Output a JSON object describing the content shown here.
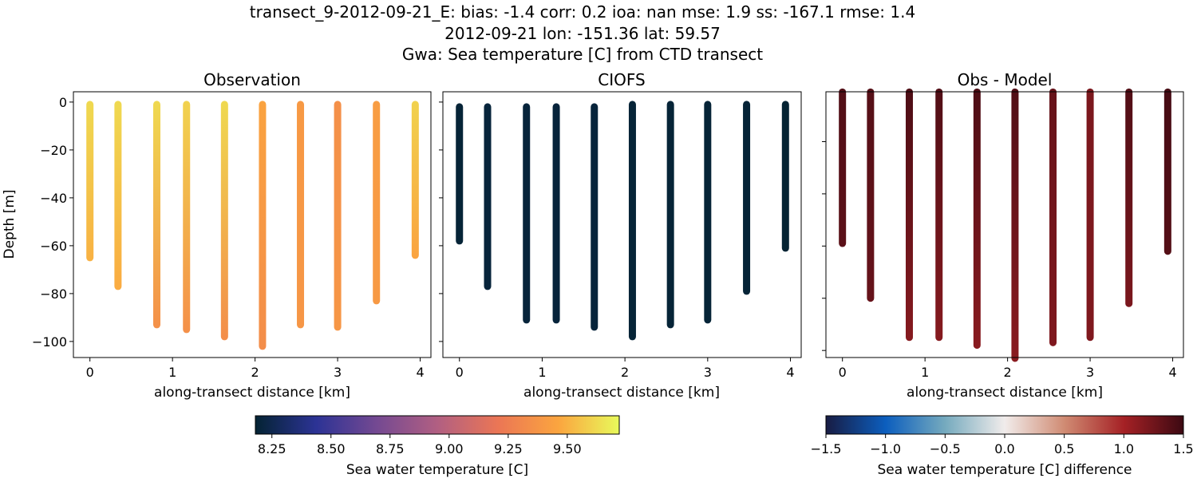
{
  "figure": {
    "title_lines": [
      "transect_9-2012-09-21_E: bias: -1.4  corr: 0.2  ioa: nan  mse: 1.9  ss: -167.1  rmse: 1.4",
      "2012-09-21 lon: -151.36 lat: 59.57",
      "Gwa: Sea temperature [C] from CTD transect"
    ]
  },
  "chart_data": [
    {
      "type": "scatter",
      "title": "Observation",
      "xlabel": "along-transect distance [km]",
      "ylabel": "Depth [m]",
      "xlim": [
        -0.2,
        4.13
      ],
      "ylim": [
        -106.7,
        4.3
      ],
      "xticks": [
        "0",
        "1",
        "2",
        "3",
        "4"
      ],
      "yticks": [
        "0",
        "−20",
        "−40",
        "−60",
        "−80",
        "−100"
      ],
      "colormap": "thermal",
      "clim": [
        8.18,
        9.72
      ],
      "casts": [
        {
          "x": 0.0,
          "top": -1,
          "bottom": -65,
          "value_top": 9.62,
          "value_bottom": 9.5
        },
        {
          "x": 0.34,
          "top": -1,
          "bottom": -77,
          "value_top": 9.62,
          "value_bottom": 9.48
        },
        {
          "x": 0.81,
          "top": -1,
          "bottom": -93,
          "value_top": 9.62,
          "value_bottom": 9.35
        },
        {
          "x": 1.17,
          "top": -1,
          "bottom": -95,
          "value_top": 9.6,
          "value_bottom": 9.35
        },
        {
          "x": 1.63,
          "top": -1,
          "bottom": -98,
          "value_top": 9.62,
          "value_bottom": 9.33
        },
        {
          "x": 2.09,
          "top": -1,
          "bottom": -102,
          "value_top": 9.45,
          "value_bottom": 9.33
        },
        {
          "x": 2.55,
          "top": -1,
          "bottom": -93,
          "value_top": 9.4,
          "value_bottom": 9.38
        },
        {
          "x": 3.0,
          "top": -1,
          "bottom": -94,
          "value_top": 9.35,
          "value_bottom": 9.38
        },
        {
          "x": 3.47,
          "top": -1,
          "bottom": -83,
          "value_top": 9.42,
          "value_bottom": 9.4
        },
        {
          "x": 3.94,
          "top": -1,
          "bottom": -64,
          "value_top": 9.6,
          "value_bottom": 9.45
        }
      ]
    },
    {
      "type": "scatter",
      "title": "CIOFS",
      "xlabel": "along-transect distance [km]",
      "xlim": [
        -0.2,
        4.13
      ],
      "ylim": [
        -106.7,
        4.3
      ],
      "xticks": [
        "0",
        "1",
        "2",
        "3",
        "4"
      ],
      "colormap": "thermal",
      "clim": [
        8.18,
        9.72
      ],
      "casts": [
        {
          "x": 0.0,
          "top": -2,
          "bottom": -58,
          "value_top": 8.19,
          "value_bottom": 8.19
        },
        {
          "x": 0.34,
          "top": -2,
          "bottom": -77,
          "value_top": 8.2,
          "value_bottom": 8.2
        },
        {
          "x": 0.81,
          "top": -2,
          "bottom": -91,
          "value_top": 8.2,
          "value_bottom": 8.2
        },
        {
          "x": 1.17,
          "top": -2,
          "bottom": -91,
          "value_top": 8.2,
          "value_bottom": 8.2
        },
        {
          "x": 1.63,
          "top": -2,
          "bottom": -94,
          "value_top": 8.2,
          "value_bottom": 8.2
        },
        {
          "x": 2.09,
          "top": -1,
          "bottom": -98,
          "value_top": 8.19,
          "value_bottom": 8.19
        },
        {
          "x": 2.55,
          "top": -1,
          "bottom": -93,
          "value_top": 8.19,
          "value_bottom": 8.19
        },
        {
          "x": 3.0,
          "top": -1,
          "bottom": -91,
          "value_top": 8.19,
          "value_bottom": 8.19
        },
        {
          "x": 3.47,
          "top": -1,
          "bottom": -79,
          "value_top": 8.19,
          "value_bottom": 8.19
        },
        {
          "x": 3.94,
          "top": -1,
          "bottom": -61,
          "value_top": 8.18,
          "value_bottom": 8.18
        }
      ]
    },
    {
      "type": "scatter",
      "title": "Obs - Model",
      "xlabel": "along-transect distance [km]",
      "xlim": [
        -0.2,
        4.13
      ],
      "ylim": [
        -102.7,
        -0.9
      ],
      "xticks": [
        "0",
        "1",
        "2",
        "3",
        "4"
      ],
      "colormap": "balance",
      "clim": [
        -1.5,
        1.5
      ],
      "casts": [
        {
          "x": 0.0,
          "top": -1,
          "bottom": -59,
          "value_top": 1.4,
          "value_bottom": 1.35
        },
        {
          "x": 0.34,
          "top": -1,
          "bottom": -80,
          "value_top": 1.38,
          "value_bottom": 1.3
        },
        {
          "x": 0.81,
          "top": -1,
          "bottom": -95,
          "value_top": 1.42,
          "value_bottom": 1.15
        },
        {
          "x": 1.17,
          "top": -1,
          "bottom": -95,
          "value_top": 1.4,
          "value_bottom": 1.15
        },
        {
          "x": 1.63,
          "top": -1,
          "bottom": -98,
          "value_top": 1.42,
          "value_bottom": 1.13
        },
        {
          "x": 2.09,
          "top": -1,
          "bottom": -103,
          "value_top": 1.4,
          "value_bottom": 1.13
        },
        {
          "x": 2.55,
          "top": -1,
          "bottom": -97,
          "value_top": 1.3,
          "value_bottom": 1.18
        },
        {
          "x": 3.0,
          "top": -1,
          "bottom": -95,
          "value_top": 1.2,
          "value_bottom": 1.18
        },
        {
          "x": 3.47,
          "top": -1,
          "bottom": -82,
          "value_top": 1.4,
          "value_bottom": 1.2
        },
        {
          "x": 3.94,
          "top": -1,
          "bottom": -62,
          "value_top": 1.45,
          "value_bottom": 1.38
        }
      ]
    }
  ],
  "colorbars": [
    {
      "label": "Sea water temperature [C]",
      "colormap": "thermal",
      "range": [
        8.18,
        9.72
      ],
      "ticks": [
        8.25,
        8.5,
        8.75,
        9.0,
        9.25,
        9.5
      ],
      "tick_labels": [
        "8.25",
        "8.50",
        "8.75",
        "9.00",
        "9.25",
        "9.50"
      ]
    },
    {
      "label": "Sea water temperature [C] difference",
      "colormap": "balance",
      "range": [
        -1.5,
        1.5
      ],
      "ticks": [
        -1.5,
        -1.0,
        -0.5,
        0.0,
        0.5,
        1.0,
        1.5
      ],
      "tick_labels": [
        "−1.5",
        "−1.0",
        "−0.5",
        "0.0",
        "0.5",
        "1.0",
        "1.5"
      ]
    }
  ],
  "colormaps": {
    "thermal": [
      "#042333",
      "#2c3395",
      "#744992",
      "#b15f82",
      "#eb7655",
      "#fba53f",
      "#e8fa5b"
    ],
    "balance": [
      "#181c43",
      "#0c5ebe",
      "#75aabe",
      "#f1eceb",
      "#d08b73",
      "#a52125",
      "#3c0912"
    ]
  }
}
